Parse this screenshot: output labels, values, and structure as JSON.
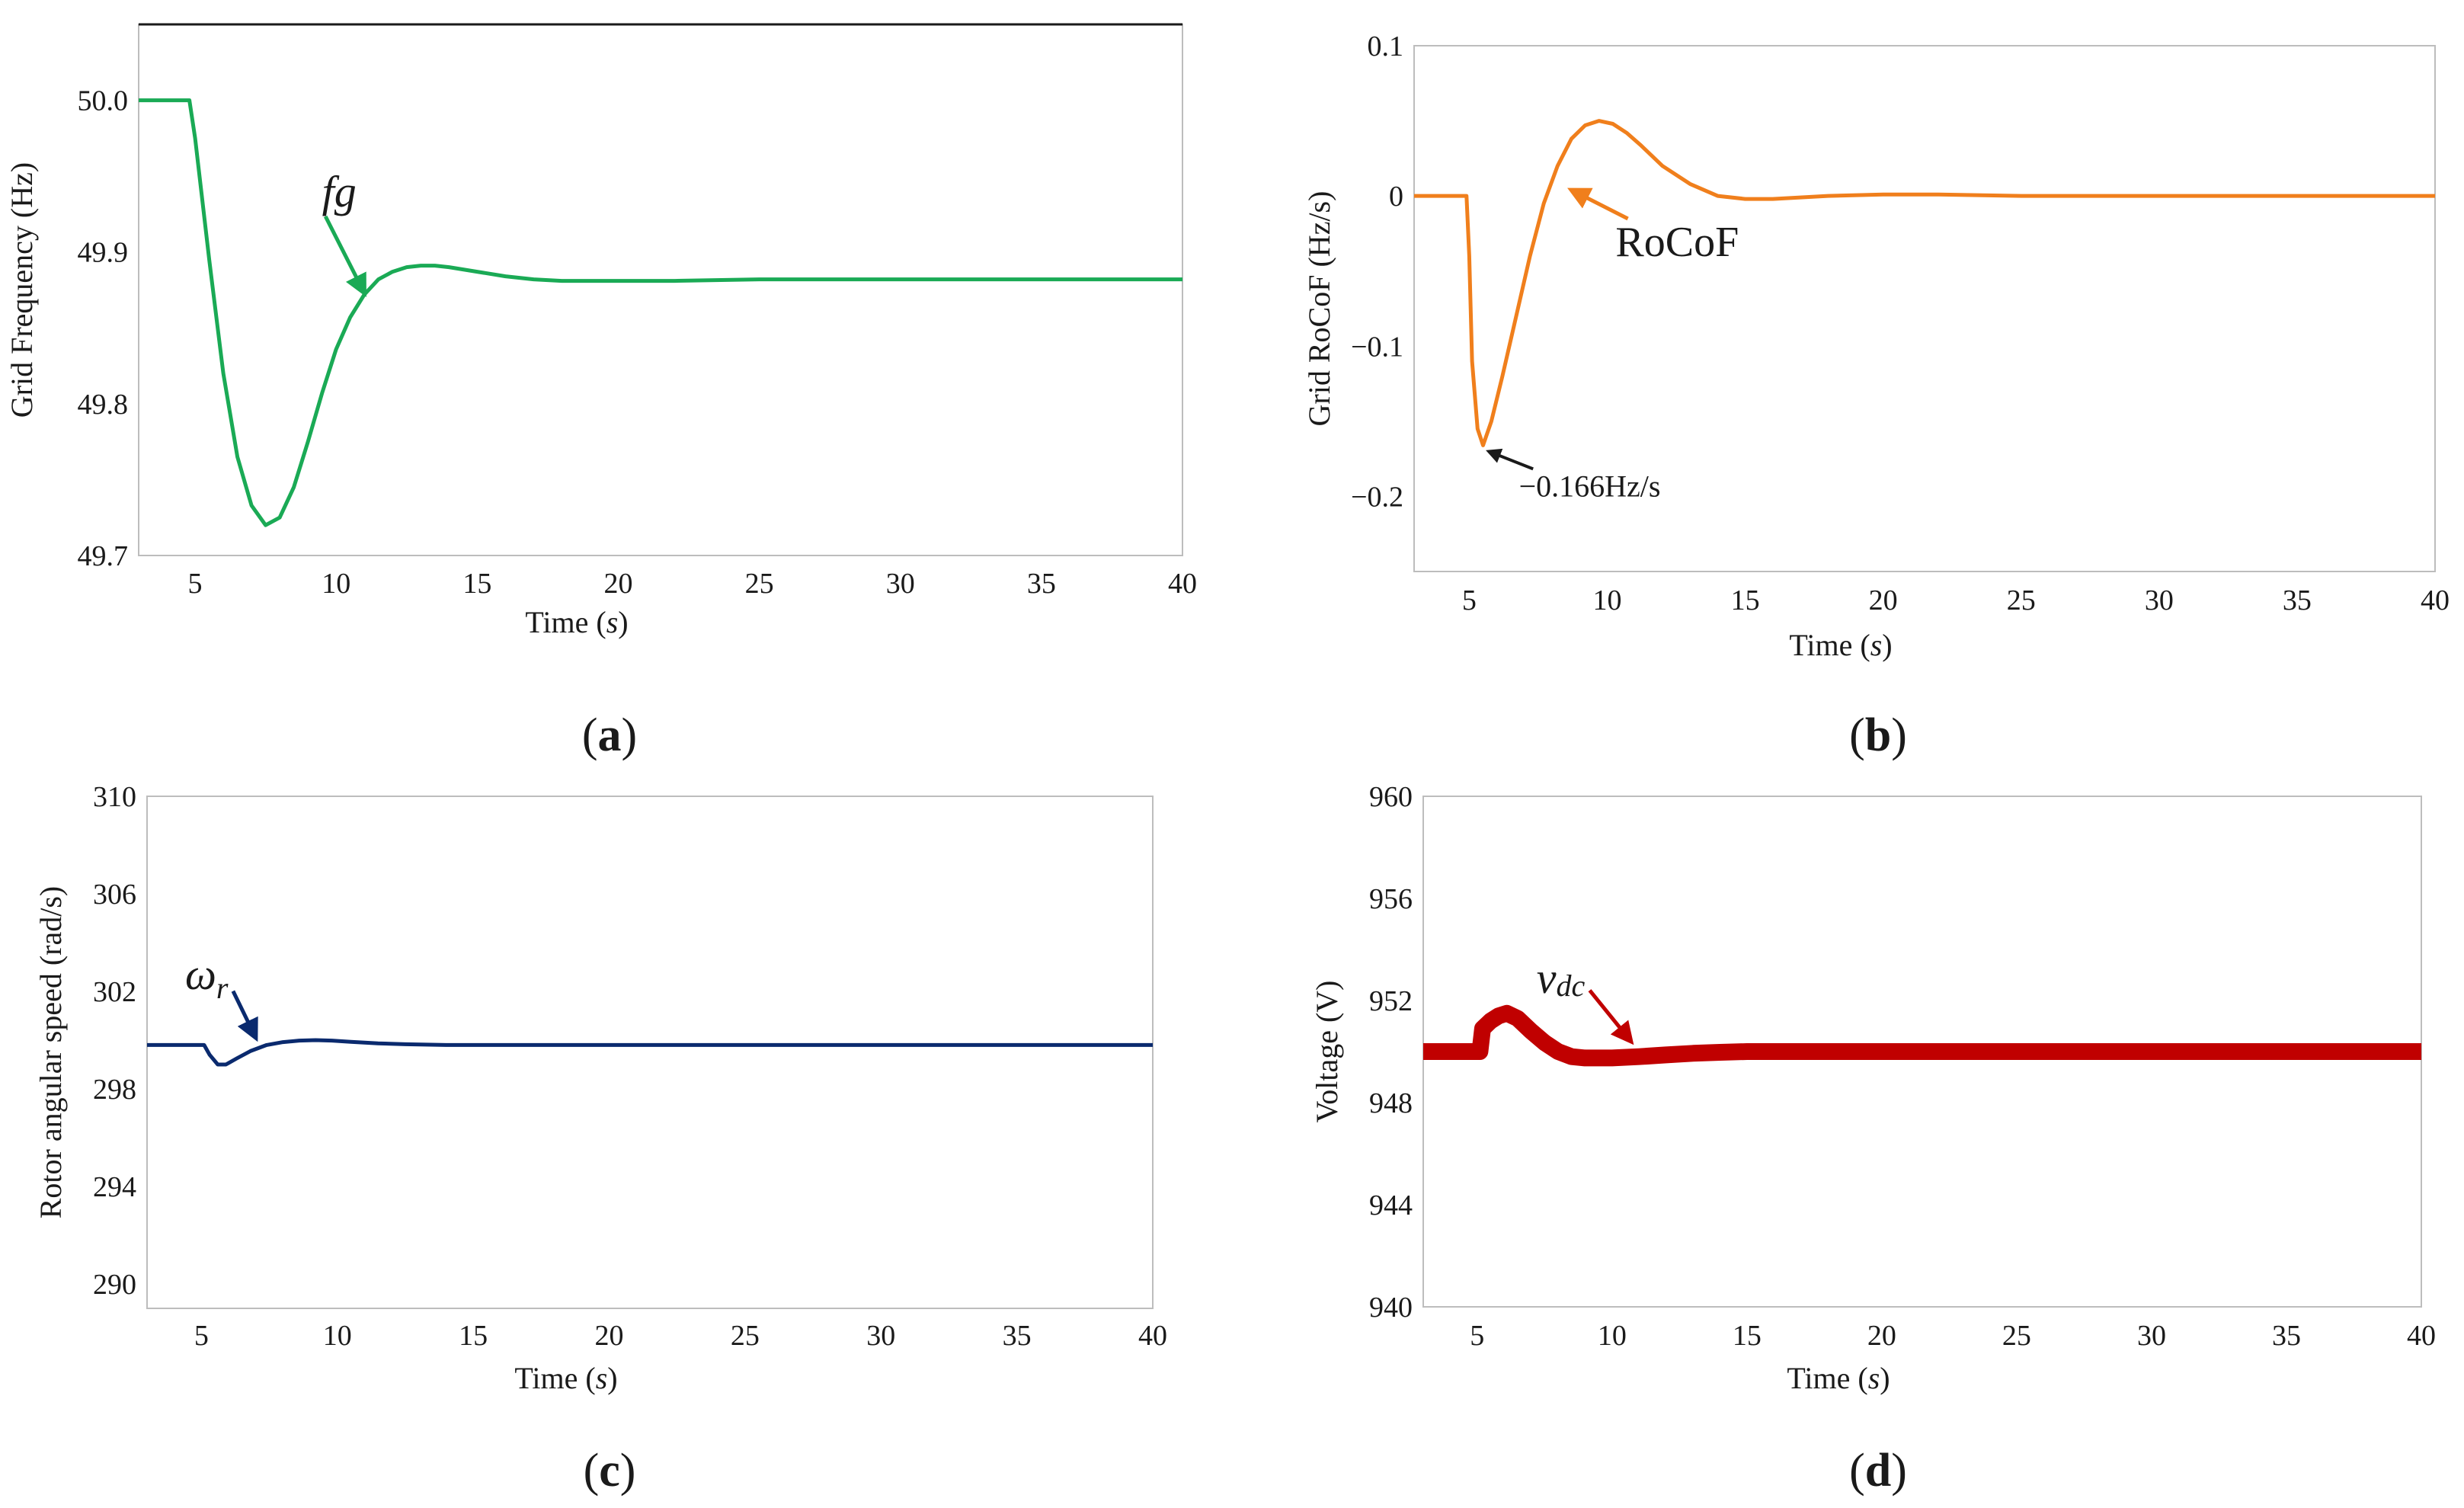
{
  "chart_data": [
    {
      "type": "line",
      "panel_label": "a",
      "xlabel_main": "Time (",
      "xlabel_var": "s",
      "xlabel_close": ")",
      "ylabel": "Grid Frequency (Hz)",
      "xlim": [
        3,
        40
      ],
      "ylim": [
        49.7,
        50.05
      ],
      "xticks": [
        5,
        10,
        15,
        20,
        25,
        30,
        35,
        40
      ],
      "yticks": [
        49.7,
        49.8,
        49.9,
        50.0
      ],
      "ytick_labels": [
        "49.7",
        "49.8",
        "49.9",
        "50.0"
      ],
      "series": [
        {
          "name": "fg",
          "color": "#1aaa55",
          "x": [
            3,
            4.8,
            5.0,
            5.5,
            6.0,
            6.5,
            7.0,
            7.5,
            8.0,
            8.5,
            9.0,
            9.5,
            10.0,
            10.5,
            11.0,
            11.5,
            12.0,
            12.5,
            13.0,
            13.5,
            14.0,
            15.0,
            16.0,
            17.0,
            18.0,
            19.0,
            20.0,
            22.0,
            25.0,
            30.0,
            35.0,
            40.0
          ],
          "y": [
            50.0,
            50.0,
            49.975,
            49.895,
            49.82,
            49.765,
            49.733,
            49.72,
            49.725,
            49.745,
            49.775,
            49.807,
            49.836,
            49.857,
            49.872,
            49.882,
            49.887,
            49.89,
            49.891,
            49.891,
            49.89,
            49.887,
            49.884,
            49.882,
            49.881,
            49.881,
            49.881,
            49.881,
            49.882,
            49.882,
            49.882,
            49.882
          ]
        }
      ],
      "annotations": [
        {
          "text": "fg",
          "color": "#1aaa55",
          "x": 9.5,
          "y": 49.93,
          "arrow_to": [
            11.0,
            49.873
          ]
        }
      ]
    },
    {
      "type": "line",
      "panel_label": "b",
      "xlabel_main": "Time (",
      "xlabel_var": "s",
      "xlabel_close": ")",
      "ylabel": "Grid RoCoF (Hz/s)",
      "xlim": [
        3,
        40
      ],
      "ylim": [
        -0.25,
        0.1
      ],
      "xticks": [
        5,
        10,
        15,
        20,
        25,
        30,
        35,
        40
      ],
      "yticks": [
        -0.2,
        -0.1,
        0,
        0.1
      ],
      "ytick_labels": [
        "−0.2",
        "−0.1",
        "0",
        "0.1"
      ],
      "series": [
        {
          "name": "RoCoF",
          "color": "#f07f1c",
          "x": [
            3,
            4.9,
            5.0,
            5.1,
            5.3,
            5.5,
            5.8,
            6.2,
            6.7,
            7.2,
            7.7,
            8.2,
            8.7,
            9.2,
            9.7,
            10.2,
            10.7,
            11.2,
            12.0,
            13.0,
            14.0,
            15.0,
            16.0,
            17.0,
            18.0,
            20.0,
            22.0,
            25.0,
            30.0,
            35.0,
            40.0
          ],
          "y": [
            0,
            0,
            -0.04,
            -0.11,
            -0.155,
            -0.166,
            -0.15,
            -0.12,
            -0.08,
            -0.04,
            -0.005,
            0.02,
            0.038,
            0.047,
            0.05,
            0.048,
            0.042,
            0.034,
            0.02,
            0.008,
            0.0,
            -0.002,
            -0.002,
            -0.001,
            0.0,
            0.001,
            0.001,
            0.0,
            0.0,
            0.0,
            0.0
          ]
        }
      ],
      "annotations": [
        {
          "text": "RoCoF",
          "color": "#f07f1c",
          "x": 10.3,
          "y": -0.04,
          "arrow_to": [
            8.7,
            0.004
          ]
        },
        {
          "text": "−0.166Hz/s",
          "color": "#1a1a1a",
          "x": 6.8,
          "y": -0.2,
          "arrow_to": [
            5.7,
            -0.17
          ]
        }
      ]
    },
    {
      "type": "line",
      "panel_label": "c",
      "xlabel_main": "Time (",
      "xlabel_var": "s",
      "xlabel_close": ")",
      "ylabel": "Rotor angular speed (rad/s)",
      "xlim": [
        3,
        40
      ],
      "ylim": [
        289,
        310
      ],
      "xticks": [
        5,
        10,
        15,
        20,
        25,
        30,
        35,
        40
      ],
      "yticks": [
        290,
        294,
        298,
        302,
        306,
        310
      ],
      "ytick_labels": [
        "290",
        "294",
        "298",
        "302",
        "306",
        "310"
      ],
      "series": [
        {
          "name": "ωr",
          "color": "#0a2a6e",
          "x": [
            3,
            5.1,
            5.3,
            5.6,
            5.9,
            6.3,
            6.8,
            7.4,
            8.0,
            8.6,
            9.2,
            9.8,
            10.5,
            11.5,
            12.5,
            14.0,
            16.0,
            20.0,
            25.0,
            30.0,
            35.0,
            40.0
          ],
          "y": [
            299.8,
            299.8,
            299.4,
            299.0,
            299.0,
            299.25,
            299.55,
            299.8,
            299.92,
            299.98,
            300.0,
            299.98,
            299.93,
            299.87,
            299.83,
            299.8,
            299.8,
            299.8,
            299.8,
            299.8,
            299.8,
            299.8
          ]
        }
      ],
      "annotations": [
        {
          "text": "ω",
          "subscript": "r",
          "color": "#0a2a6e",
          "x": 4.4,
          "y": 302.1,
          "arrow_to": [
            7.0,
            300.1
          ]
        }
      ]
    },
    {
      "type": "line",
      "panel_label": "d",
      "xlabel_main": "Time (",
      "xlabel_var": "s",
      "xlabel_close": ")",
      "ylabel": "Voltage (V)",
      "xlim": [
        3,
        40
      ],
      "ylim": [
        940,
        960
      ],
      "xticks": [
        5,
        10,
        15,
        20,
        25,
        30,
        35,
        40
      ],
      "yticks": [
        940,
        944,
        948,
        952,
        956,
        960
      ],
      "ytick_labels": [
        "940",
        "944",
        "948",
        "952",
        "956",
        "960"
      ],
      "series": [
        {
          "name": "vdc",
          "color": "#c00000",
          "x": [
            3,
            5.1,
            5.2,
            5.5,
            5.8,
            6.1,
            6.5,
            7.0,
            7.5,
            8.0,
            8.5,
            9.0,
            9.5,
            10.0,
            11.0,
            12.0,
            13.0,
            14.0,
            15.0,
            17.0,
            20.0,
            25.0,
            30.0,
            35.0,
            40.0
          ],
          "y": [
            950.0,
            950.0,
            950.9,
            951.2,
            951.4,
            951.5,
            951.3,
            950.8,
            950.35,
            950.0,
            949.8,
            949.75,
            949.75,
            949.75,
            949.8,
            949.87,
            949.93,
            949.97,
            950.0,
            950.0,
            950.0,
            950.0,
            950.0,
            950.0,
            950.0
          ]
        }
      ],
      "annotations": [
        {
          "text": "v",
          "subscript": "dc",
          "color": "#c00000",
          "x": 7.2,
          "y": 952.3,
          "arrow_to": [
            10.7,
            950.4
          ]
        }
      ]
    }
  ]
}
